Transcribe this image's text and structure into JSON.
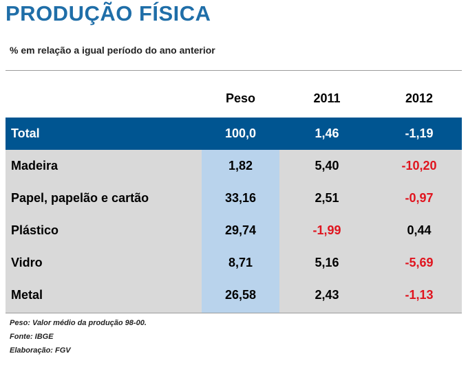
{
  "title": "PRODUÇÃO FÍSICA",
  "subtitle": "% em relação a igual período do ano anterior",
  "header": {
    "peso": "Peso",
    "y2011": "2011",
    "y2012": "2012"
  },
  "total": {
    "label": "Total",
    "peso": "100,0",
    "y2011": "1,46",
    "y2012": "-1,19"
  },
  "rows": [
    {
      "label": "Madeira",
      "peso": "1,82",
      "y2011": "5,40",
      "y2012": "-10,20"
    },
    {
      "label": "Papel, papelão e cartão",
      "peso": "33,16",
      "y2011": "2,51",
      "y2012": "-0,97"
    },
    {
      "label": "Plástico",
      "peso": "29,74",
      "y2011": "-1,99",
      "y2012": "0,44"
    },
    {
      "label": "Vidro",
      "peso": "8,71",
      "y2011": "5,16",
      "y2012": "-5,69"
    },
    {
      "label": "Metal",
      "peso": "26,58",
      "y2011": "2,43",
      "y2012": "-1,13"
    }
  ],
  "notes": [
    "Peso: Valor médio da produção 98-00.",
    "Fonte: IBGE",
    "Elaboração: FGV"
  ],
  "colors": {
    "accent": "#1f6ea8",
    "total_bg": "#005591",
    "body_bg": "#d9d9d9",
    "peso_band": "#b9d3ec",
    "negative": "#e0141e"
  }
}
